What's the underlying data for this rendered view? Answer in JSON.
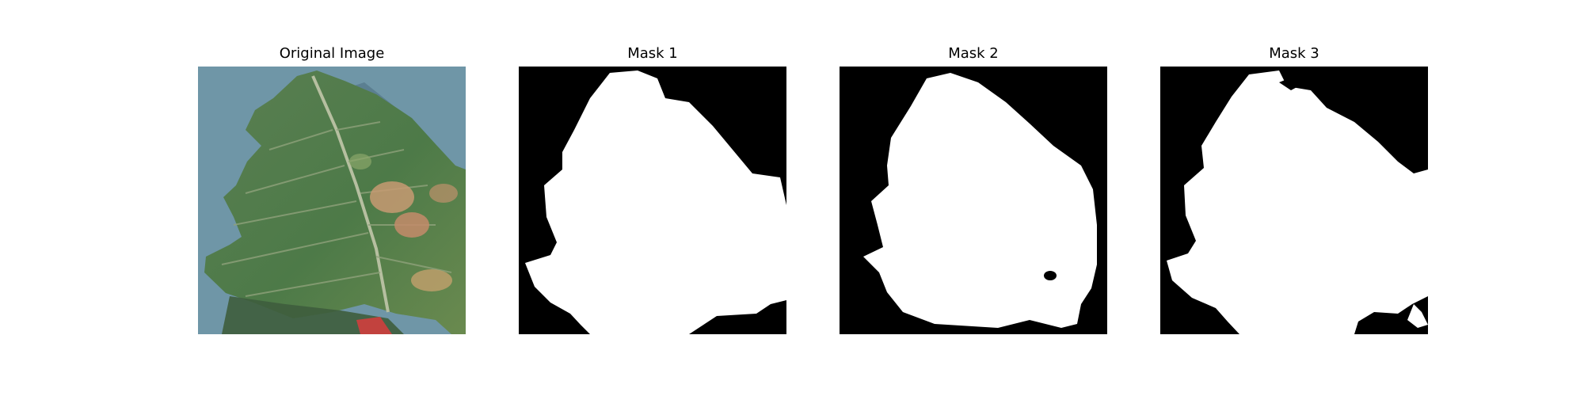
{
  "figure": {
    "panels": [
      {
        "title": "Original Image",
        "kind": "photo"
      },
      {
        "title": "Mask 1",
        "kind": "mask"
      },
      {
        "title": "Mask 2",
        "kind": "mask"
      },
      {
        "title": "Mask 3",
        "kind": "mask"
      }
    ]
  },
  "colors": {
    "background": "#ffffff",
    "mask_foreground": "#ffffff",
    "mask_background": "#000000",
    "photo_background": "#6f96a7",
    "leaf_green": "#4f7a48"
  }
}
